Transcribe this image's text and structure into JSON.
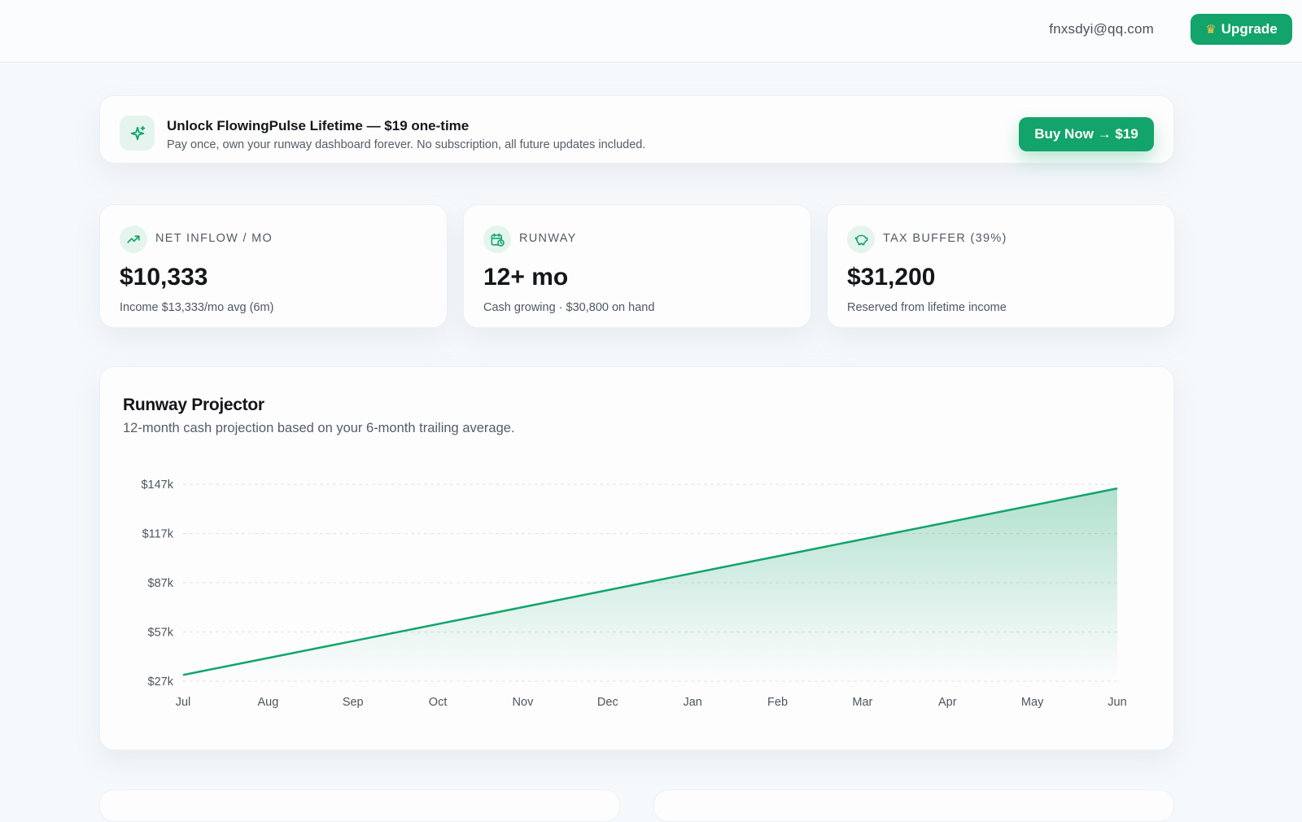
{
  "header": {
    "email": "fnxsdyi@qq.com",
    "upgrade_label": "Upgrade"
  },
  "promo": {
    "title": "Unlock FlowingPulse Lifetime — $19 one-time",
    "subtitle": "Pay once, own your runway dashboard forever. No subscription, all future updates included.",
    "buy_label": "Buy Now → $19"
  },
  "stats": [
    {
      "label": "NET INFLOW / MO",
      "value": "$10,333",
      "note": "Income $13,333/mo avg (6m)",
      "icon": "trend-up-icon"
    },
    {
      "label": "RUNWAY",
      "value": "12+ mo",
      "note": "Cash growing · $30,800 on hand",
      "icon": "calendar-clock-icon"
    },
    {
      "label": "TAX BUFFER (39%)",
      "value": "$31,200",
      "note": "Reserved from lifetime income",
      "icon": "piggy-bank-icon"
    }
  ],
  "chart": {
    "title": "Runway Projector",
    "subtitle": "12-month cash projection based on your 6-month trailing average."
  },
  "colors": {
    "accent": "#12a46a",
    "accent_soft": "#e5f5ed"
  },
  "chart_data": {
    "type": "area",
    "title": "Runway Projector",
    "subtitle": "12-month cash projection based on your 6-month trailing average.",
    "x": [
      "Jul",
      "Aug",
      "Sep",
      "Oct",
      "Nov",
      "Dec",
      "Jan",
      "Feb",
      "Mar",
      "Apr",
      "May",
      "Jun"
    ],
    "series": [
      {
        "values": [
          30800,
          41133,
          51466,
          61799,
          72132,
          82465,
          92798,
          103131,
          113464,
          123797,
          134130,
          144463
        ]
      }
    ],
    "y_ticks": [
      "$27k",
      "$57k",
      "$87k",
      "$117k",
      "$147k"
    ],
    "ylim": [
      27000,
      147000
    ],
    "grid": true,
    "legend": "none"
  }
}
